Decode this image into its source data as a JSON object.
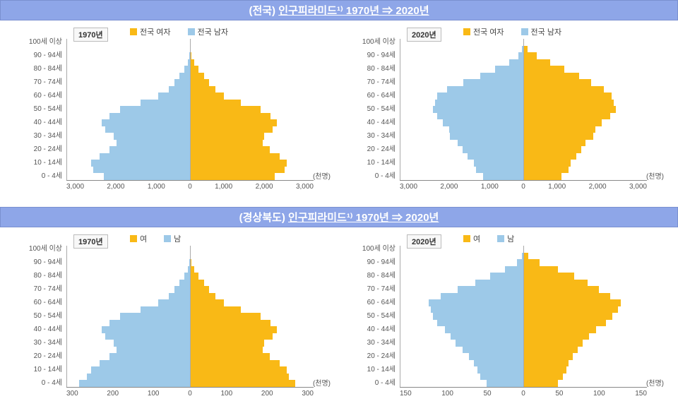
{
  "colors": {
    "male": "#9dc9e8",
    "female": "#f9b916",
    "title_bg": "#8ea6e8",
    "text": "#555555",
    "axis": "#888888"
  },
  "unit_label": "(천명)",
  "age_labels": [
    "100세 이상",
    "90 - 94세",
    "80 - 84세",
    "70 - 74세",
    "60 - 64세",
    "50 - 54세",
    "40 - 44세",
    "30 - 34세",
    "20 - 24세",
    "10 - 14세",
    "0 - 4세"
  ],
  "sections": [
    {
      "title_prefix": "(전국)",
      "title_main": "인구피라미드¹⁾ 1970년  ⇒  2020년",
      "charts": [
        {
          "year": "1970년",
          "legend": [
            {
              "label": "전국 여자",
              "color": "#f9b916"
            },
            {
              "label": "전국 남자",
              "color": "#9dc9e8"
            }
          ],
          "x_ticks": [
            "3,000",
            "2,000",
            "1,000",
            "0",
            "1,000",
            "2,000",
            "3,000"
          ],
          "x_max": 3000,
          "male": [
            0,
            2,
            15,
            60,
            140,
            260,
            380,
            520,
            770,
            1200,
            1700,
            1950,
            2150,
            2050,
            1850,
            1780,
            1950,
            2200,
            2400,
            2350,
            2100
          ],
          "female": [
            1,
            5,
            30,
            95,
            200,
            340,
            470,
            620,
            830,
            1230,
            1720,
            1960,
            2100,
            2000,
            1800,
            1760,
            1930,
            2180,
            2350,
            2300,
            2050
          ]
        },
        {
          "year": "2020년",
          "legend": [
            {
              "label": "전국 여자",
              "color": "#f9b916"
            },
            {
              "label": "전국 남자",
              "color": "#9dc9e8"
            }
          ],
          "x_ticks": [
            "3,000",
            "2,000",
            "1,000",
            "0",
            "1,000",
            "2,000",
            "3,000"
          ],
          "x_max": 3000,
          "male": [
            5,
            30,
            120,
            350,
            680,
            1050,
            1450,
            1850,
            2100,
            2150,
            2200,
            2100,
            1950,
            1800,
            1780,
            1600,
            1480,
            1350,
            1200,
            1150,
            980
          ],
          "female": [
            20,
            100,
            320,
            650,
            1000,
            1350,
            1650,
            1950,
            2150,
            2200,
            2250,
            2100,
            1900,
            1750,
            1700,
            1500,
            1400,
            1280,
            1150,
            1100,
            930
          ]
        }
      ]
    },
    {
      "title_prefix": "(경상북도)",
      "title_main": "인구피라미드¹⁾ 1970년  ⇒  2020년",
      "charts": [
        {
          "year": "1970년",
          "legend": [
            {
              "label": "여",
              "color": "#f9b916"
            },
            {
              "label": "남",
              "color": "#9dc9e8"
            }
          ],
          "x_ticks": [
            "300",
            "200",
            "100",
            "0",
            "100",
            "200",
            "300"
          ],
          "x_max": 300,
          "male": [
            0,
            0,
            2,
            6,
            14,
            26,
            38,
            52,
            77,
            120,
            170,
            195,
            215,
            205,
            185,
            178,
            195,
            220,
            240,
            250,
            270
          ],
          "female": [
            0,
            1,
            3,
            10,
            20,
            34,
            47,
            62,
            83,
            123,
            172,
            196,
            210,
            200,
            180,
            176,
            193,
            218,
            235,
            240,
            255
          ]
        },
        {
          "year": "2020년",
          "legend": [
            {
              "label": "여",
              "color": "#f9b916"
            },
            {
              "label": "남",
              "color": "#9dc9e8"
            }
          ],
          "x_ticks": [
            "150",
            "100",
            "50",
            "0",
            "50",
            "100",
            "150"
          ],
          "x_max": 150,
          "male": [
            0,
            2,
            8,
            22,
            40,
            58,
            80,
            100,
            115,
            112,
            110,
            105,
            95,
            88,
            82,
            74,
            66,
            60,
            56,
            52,
            45
          ],
          "female": [
            1,
            6,
            20,
            42,
            62,
            78,
            92,
            105,
            118,
            115,
            108,
            100,
            88,
            80,
            72,
            66,
            60,
            55,
            52,
            48,
            42
          ]
        }
      ]
    }
  ]
}
